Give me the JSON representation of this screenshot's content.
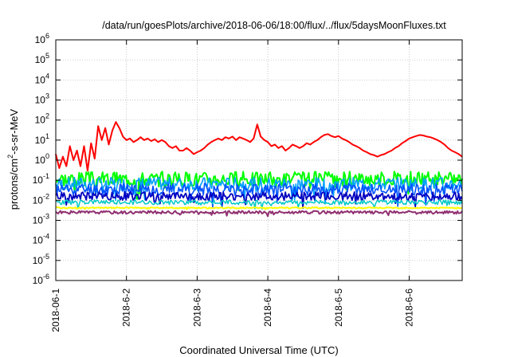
{
  "chart_data": {
    "type": "line",
    "title": "/data/run/goesPlots/archive/2018-06-06/18:00/flux/../flux/5daysMoonFluxes.txt",
    "xlabel": "Coordinated Universal Time (UTC)",
    "ylabel_parts": [
      "protons/cm",
      "2",
      "-s-sr-MeV"
    ],
    "y_scale": "log",
    "ylim": [
      1e-06,
      1000000.0
    ],
    "y_ticks": [
      {
        "base": "10",
        "exp": "-6",
        "value": 1e-06
      },
      {
        "base": "10",
        "exp": "-5",
        "value": 1e-05
      },
      {
        "base": "10",
        "exp": "-4",
        "value": 0.0001
      },
      {
        "base": "10",
        "exp": "-3",
        "value": 0.001
      },
      {
        "base": "10",
        "exp": "-2",
        "value": 0.01
      },
      {
        "base": "10",
        "exp": "-1",
        "value": 0.1
      },
      {
        "base": "10",
        "exp": "0",
        "value": 1
      },
      {
        "base": "10",
        "exp": "1",
        "value": 10
      },
      {
        "base": "10",
        "exp": "2",
        "value": 100
      },
      {
        "base": "10",
        "exp": "3",
        "value": 1000
      },
      {
        "base": "10",
        "exp": "4",
        "value": 10000
      },
      {
        "base": "10",
        "exp": "5",
        "value": 100000
      },
      {
        "base": "10",
        "exp": "6",
        "value": 1000000
      }
    ],
    "x_unit": "days",
    "xlim": [
      0,
      5.75
    ],
    "x_ticks": [
      {
        "label": "2018-06-1",
        "value": 0
      },
      {
        "label": "2018-6-2",
        "value": 1
      },
      {
        "label": "2018-6-3",
        "value": 2
      },
      {
        "label": "2018-6-4",
        "value": 3
      },
      {
        "label": "2018-6-5",
        "value": 4
      },
      {
        "label": "2018-6-6",
        "value": 5
      }
    ],
    "grid": true,
    "series_step": 0.05,
    "series": [
      {
        "color": "#ff0000",
        "width": 2,
        "x0": 0,
        "dx": 0.05,
        "values": [
          2,
          0.4,
          1.5,
          0.5,
          5,
          1,
          3,
          0.5,
          5,
          0.3,
          7,
          1.2,
          50,
          10,
          40,
          6,
          30,
          80,
          40,
          15,
          10,
          12,
          8,
          10,
          14,
          10,
          12,
          9,
          11,
          8,
          10,
          8,
          5,
          4,
          5,
          3,
          3,
          4,
          3,
          2,
          2.5,
          3,
          4,
          6,
          8,
          10,
          12,
          10,
          14,
          12,
          15,
          10,
          14,
          12,
          10,
          8,
          12,
          60,
          15,
          10,
          8,
          5,
          6,
          4,
          5,
          3,
          4,
          6,
          5,
          4,
          5,
          7,
          6,
          8,
          10,
          14,
          18,
          20,
          16,
          14,
          16,
          12,
          10,
          8,
          6,
          5,
          4,
          3,
          2.5,
          2,
          1.8,
          1.5,
          1.8,
          2,
          2.5,
          3,
          4,
          5,
          7,
          9,
          12,
          14,
          16,
          18,
          17,
          15,
          14,
          12,
          10,
          8,
          6,
          4,
          3,
          2.5,
          2,
          1.5,
          1.5,
          2,
          3,
          4,
          6,
          8,
          10,
          12,
          15,
          18,
          16,
          14,
          12,
          10,
          9,
          6,
          4,
          3,
          2.5,
          3,
          2.5,
          3,
          3.5,
          3,
          4,
          4.5,
          5,
          5.5,
          6,
          10,
          8,
          9,
          20,
          18,
          15,
          22,
          20,
          16
        ]
      },
      {
        "color": "#00ff00",
        "width": 2,
        "base": 0.12,
        "amp": 0.6,
        "seed": 3
      },
      {
        "color": "#00a0ff",
        "width": 1.6,
        "base": 0.065,
        "amp": 0.55,
        "seed": 7
      },
      {
        "color": "#0050ff",
        "width": 1.6,
        "base": 0.035,
        "amp": 0.5,
        "seed": 11
      },
      {
        "color": "#0000c0",
        "width": 1.8,
        "base": 0.016,
        "amp": 0.35,
        "seed": 19
      },
      {
        "color": "#00c8c8",
        "width": 1.5,
        "base": 0.008,
        "amp": 0.2,
        "seed": 23
      },
      {
        "color": "#ffff00",
        "width": 2,
        "base": 0.0042,
        "amp": 0.05,
        "seed": 29
      },
      {
        "color": "#903070",
        "width": 2,
        "base": 0.0025,
        "amp": 0.12,
        "seed": 31
      }
    ]
  }
}
